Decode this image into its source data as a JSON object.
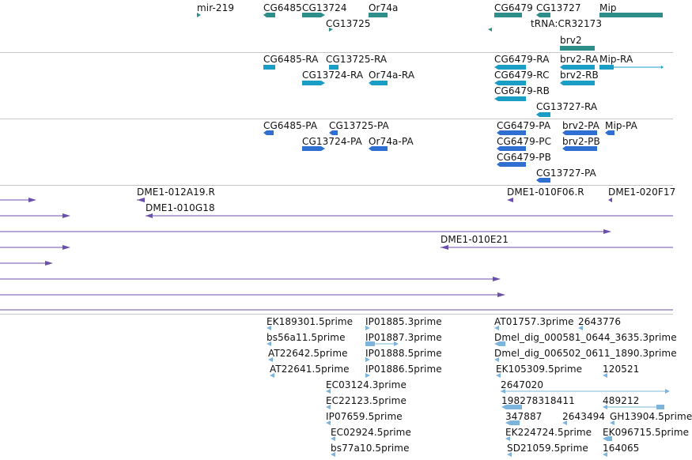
{
  "colors": {
    "gene": "#2d8e8a",
    "mrna_ncrna": "#1a9ec5",
    "protein_cds": "#2f6fd1",
    "bac_clone": "#6a4fad",
    "est": "#7cb4db",
    "divider": "#c6c6c6",
    "text": "#111111"
  },
  "tracks": {
    "genes": {
      "labels": [
        "mir-219",
        "CG6485",
        "CG13724",
        "Or74a",
        "CG6479",
        "CG13727",
        "Mip",
        "CG13725",
        "tRNA:CR32173",
        "brv2"
      ]
    },
    "transcripts": {
      "labels": [
        "CG6485-RA",
        "CG13725-RA",
        "CG6479-RA",
        "brv2-RA",
        "Mip-RA",
        "CG13724-RA",
        "Or74a-RA",
        "CG6479-RC",
        "brv2-RB",
        "CG6479-RB",
        "CG13727-RA"
      ]
    },
    "proteins": {
      "labels": [
        "CG6485-PA",
        "CG13725-PA",
        "CG6479-PA",
        "brv2-PA",
        "Mip-PA",
        "CG13724-PA",
        "Or74a-PA",
        "CG6479-PC",
        "brv2-PB",
        "CG6479-PB",
        "CG13727-PA"
      ]
    },
    "bac_clones": {
      "labels": [
        "DME1-012A19.R",
        "DME1-010F06.R",
        "DME1-020F17",
        "DME1-010G18",
        "DME1-010E21"
      ]
    },
    "ests": {
      "labels": [
        "EK189301.5prime",
        "IP01885.3prime",
        "AT01757.3prime",
        "2643776",
        "bs56a11.5prime",
        "IP01887.3prime",
        "Dmel_dig_000581_0644_3635.3prime",
        "AT22642.5prime",
        "IP01888.5prime",
        "Dmel_dig_006502_0611_1890.3prime",
        "AT22641.5prime",
        "IP01886.5prime",
        "EK105309.5prime",
        "120521",
        "EC03124.3prime",
        "2647020",
        "EC22123.5prime",
        "198278318411",
        "489212",
        "IP07659.5prime",
        "347887",
        "2643494",
        "GH13904.5prime",
        "EC02924.5prime",
        "EK224724.5prime",
        "EK096715.5prime",
        "bs77a10.5prime",
        "SD21059.5prime",
        "164065"
      ]
    }
  }
}
